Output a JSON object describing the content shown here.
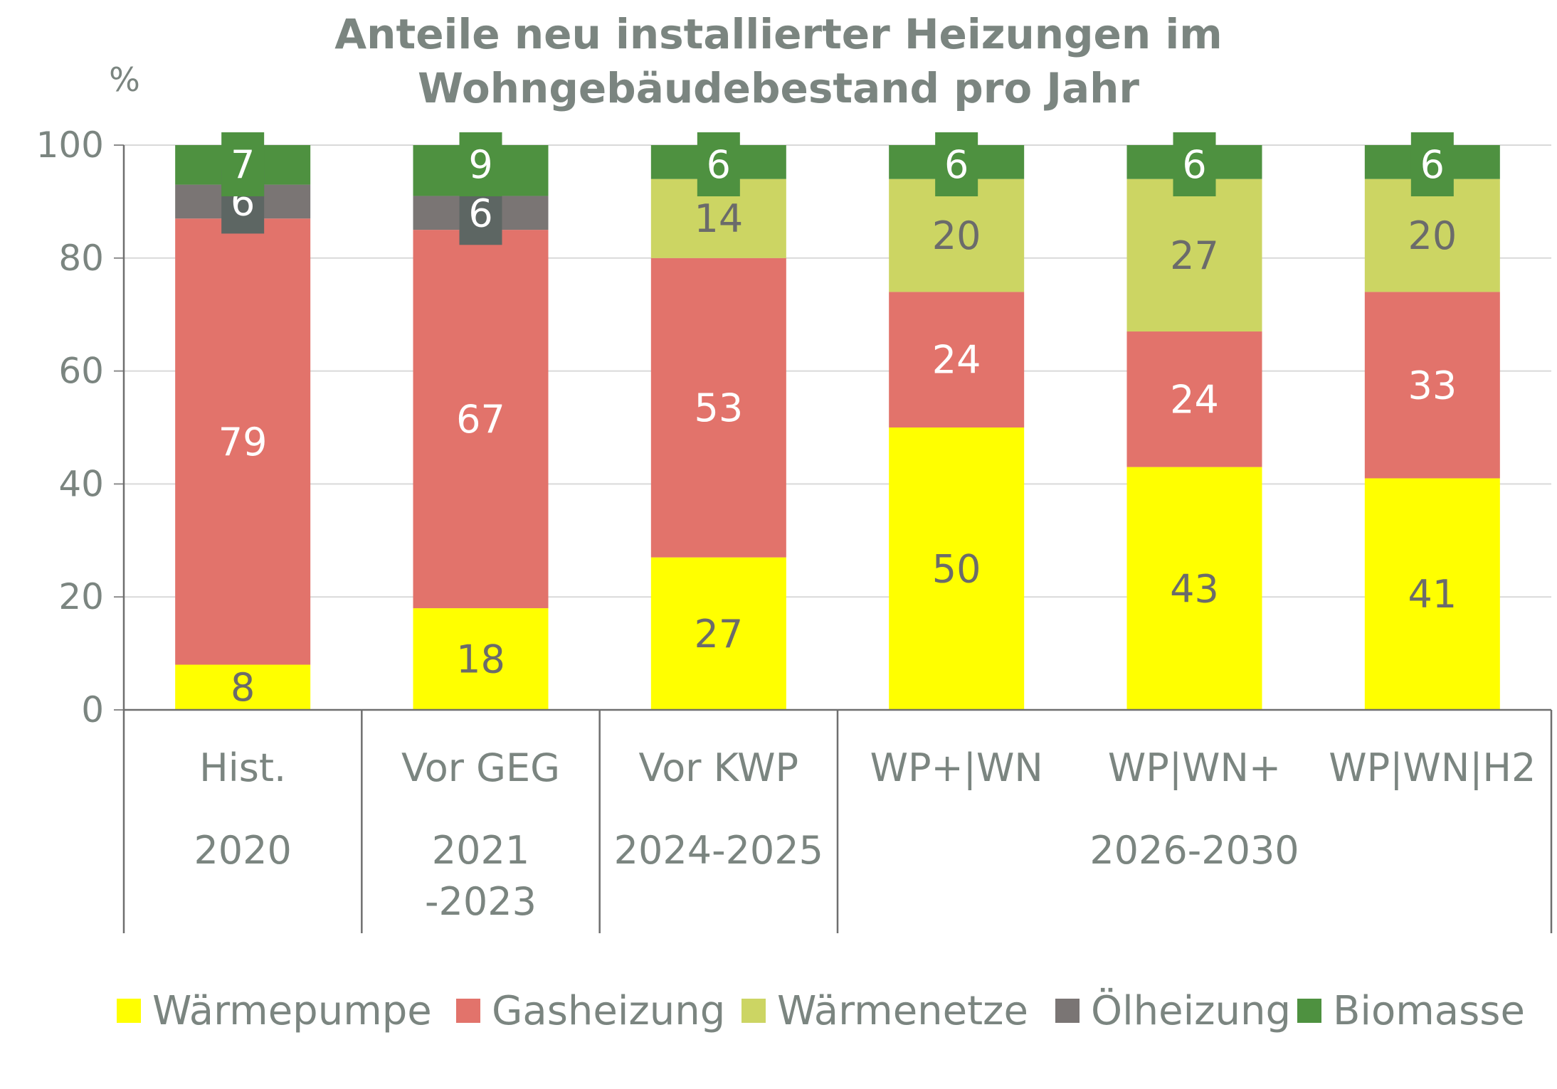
{
  "chart_data": {
    "type": "bar",
    "stacked": true,
    "title_lines": [
      "Anteile neu installierter Heizungen im",
      "Wohngebäudebestand pro Jahr"
    ],
    "ylabel": "%",
    "ylim": [
      0,
      100
    ],
    "yticks": [
      0,
      20,
      40,
      60,
      80,
      100
    ],
    "grid": true,
    "legend_position": "bottom",
    "categories": [
      "Hist.",
      "Vor GEG",
      "Vor KWP",
      "WP+|WN",
      "WP|WN+",
      "WP|WN|H2"
    ],
    "group_labels": [
      {
        "lines": [
          "2020"
        ],
        "from": 0,
        "to": 0
      },
      {
        "lines": [
          "2021",
          "-2023"
        ],
        "from": 1,
        "to": 1
      },
      {
        "lines": [
          "2024-2025"
        ],
        "from": 2,
        "to": 2
      },
      {
        "lines": [
          "2026-2030"
        ],
        "from": 3,
        "to": 5
      }
    ],
    "series": [
      {
        "name": "Wärmepumpe",
        "color": "#FFFF00",
        "label_color": "#6b6b6b",
        "values": [
          8,
          18,
          27,
          50,
          43,
          41
        ],
        "labels": [
          "8",
          "18",
          "27",
          "50",
          "43",
          "41"
        ]
      },
      {
        "name": "Gasheizung",
        "color": "#E2736B",
        "label_color": "#ffffff",
        "values": [
          79,
          67,
          53,
          24,
          24,
          33
        ],
        "labels": [
          "79",
          "67",
          "53",
          "24",
          "24",
          "33"
        ]
      },
      {
        "name": "Wärmenetze",
        "color": "#CCD563",
        "label_color": "#6b6b6b",
        "values": [
          0,
          0,
          14,
          20,
          27,
          20
        ],
        "labels": [
          "",
          "",
          "14",
          "20",
          "27",
          "20"
        ]
      },
      {
        "name": "Ölheizung",
        "color": "#7A7574",
        "label_color": "#ffffff",
        "label_bg": "#5d6663",
        "values": [
          6,
          6,
          0,
          0,
          0,
          0
        ],
        "labels": [
          "6",
          "6",
          "",
          "",
          "",
          ""
        ]
      },
      {
        "name": "Biomasse",
        "color": "#4E9140",
        "label_color": "#ffffff",
        "label_bg": "#4E9140",
        "values": [
          7,
          9,
          6,
          6,
          6,
          6
        ],
        "labels": [
          "7",
          "9",
          "6",
          "6",
          "6",
          "6"
        ]
      }
    ]
  }
}
